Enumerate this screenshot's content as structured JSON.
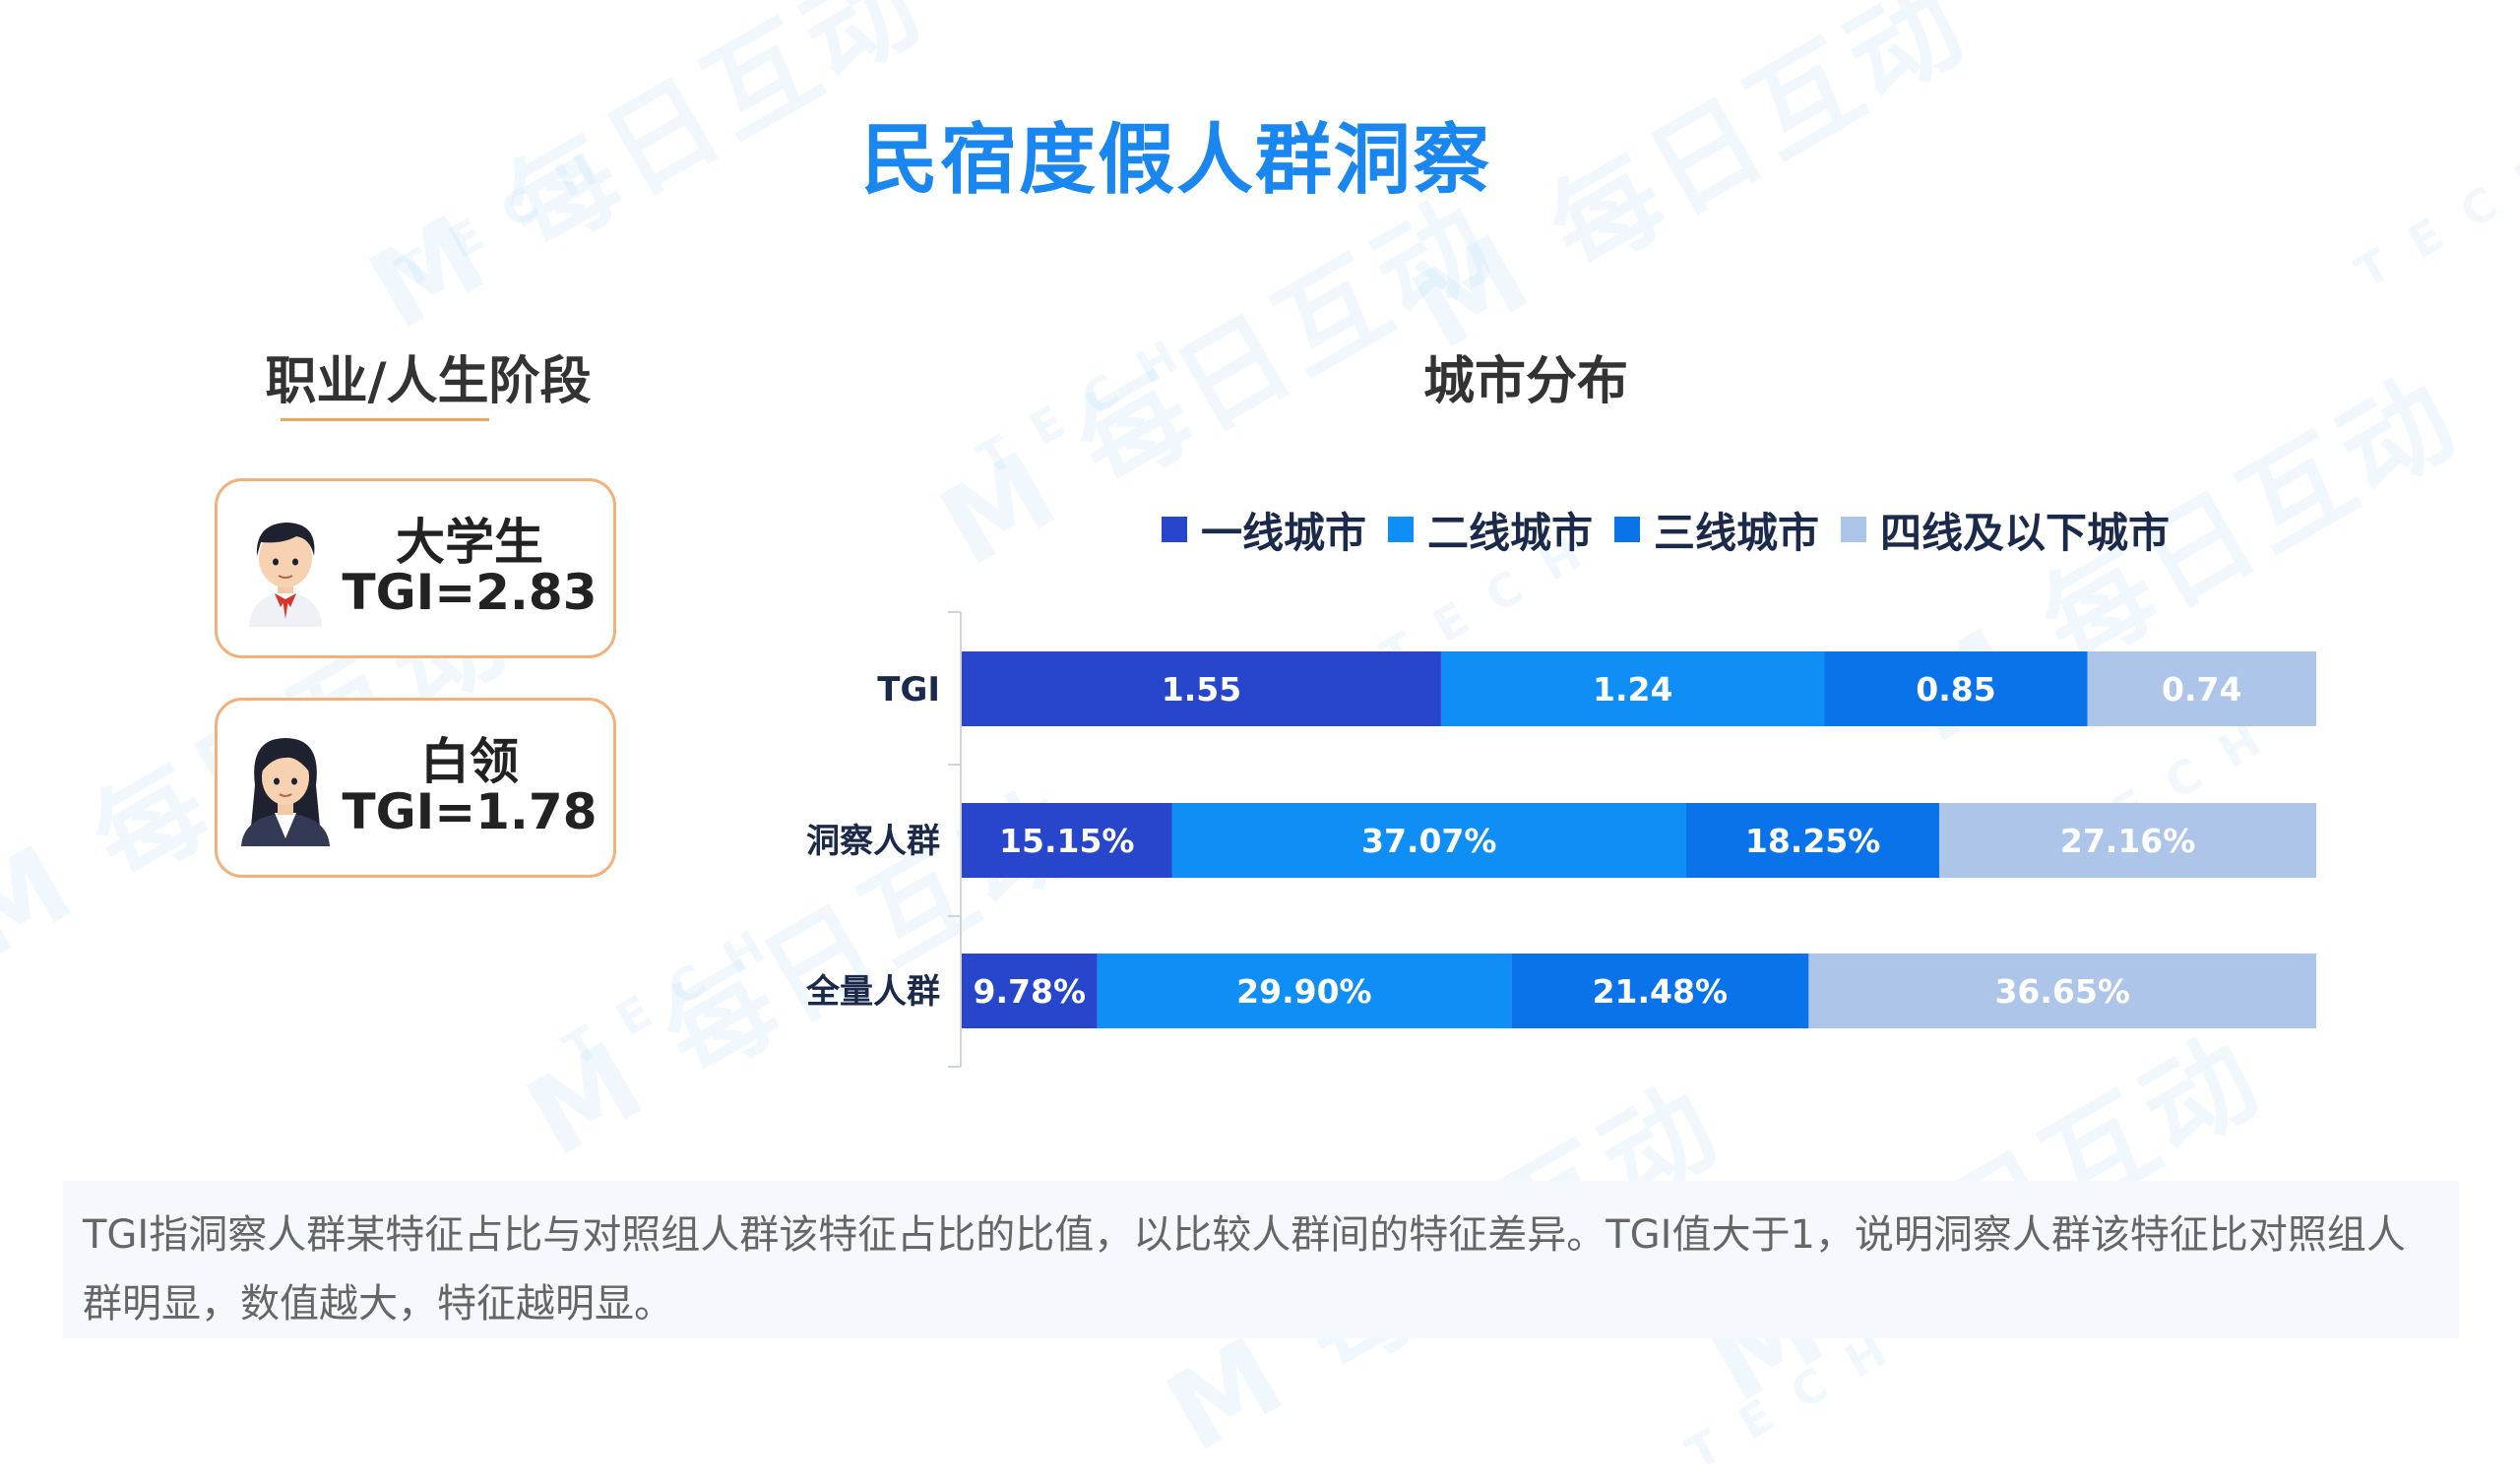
{
  "page": {
    "title": "民宿度假人群洞察",
    "watermark_text": "M TECH 每日互动"
  },
  "personas": {
    "section_title": "职业/人生阶段",
    "items": [
      {
        "name": "大学生",
        "tgi_label": "TGI=2.83",
        "tgi": 2.83,
        "icon": "student-avatar-icon"
      },
      {
        "name": "白领",
        "tgi_label": "TGI=1.78",
        "tgi": 1.78,
        "icon": "office-worker-avatar-icon"
      }
    ]
  },
  "chart_section_title": "城市分布",
  "footer_note": "TGI指洞察人群某特征占比与对照组人群该特征占比的比值，以比较人群间的特征差异。TGI值大于1，说明洞察人群该特征比对照组人群明显，数值越大，特征越明显。",
  "chart_data": {
    "type": "bar",
    "orientation": "horizontal",
    "stacked": "100%",
    "categories": [
      "TGI",
      "洞察人群",
      "全量人群"
    ],
    "series": [
      {
        "name": "一线城市",
        "color": "#2746cc",
        "values": [
          1.55,
          15.15,
          9.78
        ],
        "labels": [
          "1.55",
          "15.15%",
          "9.78%"
        ]
      },
      {
        "name": "二线城市",
        "color": "#0f8ff5",
        "values": [
          1.24,
          37.07,
          29.9
        ],
        "labels": [
          "1.24",
          "37.07%",
          "29.90%"
        ]
      },
      {
        "name": "三线城市",
        "color": "#0a73ea",
        "values": [
          0.85,
          18.25,
          21.48
        ],
        "labels": [
          "0.85",
          "18.25%",
          "21.48%"
        ]
      },
      {
        "name": "四线及以下城市",
        "color": "#aec5ea",
        "values": [
          0.74,
          27.16,
          36.65
        ],
        "labels": [
          "0.74",
          "27.16%",
          "36.65%"
        ]
      }
    ],
    "legend_position": "top",
    "grid": false
  }
}
